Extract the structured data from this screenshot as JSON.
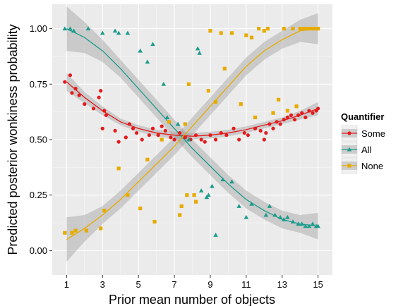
{
  "chart_data": {
    "type": "scatter",
    "xlabel": "Prior mean number of objects",
    "ylabel": "Predicted posterior wonkiness probability",
    "xlim": [
      0.2,
      15.8
    ],
    "ylim": [
      -0.11,
      1.11
    ],
    "x_ticks": [
      "1",
      "3",
      "5",
      "7",
      "9",
      "11",
      "13",
      "15"
    ],
    "x_tick_values": [
      1,
      3,
      5,
      7,
      9,
      11,
      13,
      15
    ],
    "y_ticks": [
      "0.00",
      "0.25",
      "0.50",
      "0.75",
      "1.00"
    ],
    "y_tick_values": [
      0,
      0.25,
      0.5,
      0.75,
      1
    ],
    "grid": true,
    "legend": {
      "title": "Quantifier",
      "position": "right"
    },
    "series": [
      {
        "name": "Some",
        "marker": "circle",
        "color": "#e41a1c",
        "points": [
          [
            0.9,
            0.76
          ],
          [
            1.2,
            0.79
          ],
          [
            1.3,
            0.71
          ],
          [
            1.5,
            0.73
          ],
          [
            1.7,
            0.7
          ],
          [
            2.0,
            0.66
          ],
          [
            2.5,
            0.64
          ],
          [
            2.8,
            0.69
          ],
          [
            2.9,
            0.72
          ],
          [
            3.0,
            0.55
          ],
          [
            3.1,
            0.63
          ],
          [
            3.2,
            0.61
          ],
          [
            3.7,
            0.54
          ],
          [
            3.9,
            0.49
          ],
          [
            4.3,
            0.51
          ],
          [
            4.5,
            0.57
          ],
          [
            4.7,
            0.55
          ],
          [
            4.9,
            0.53
          ],
          [
            5.2,
            0.5
          ],
          [
            5.6,
            0.52
          ],
          [
            5.8,
            0.55
          ],
          [
            6.1,
            0.52
          ],
          [
            6.3,
            0.56
          ],
          [
            6.5,
            0.54
          ],
          [
            6.8,
            0.51
          ],
          [
            7.0,
            0.5
          ],
          [
            7.3,
            0.53
          ],
          [
            7.6,
            0.51
          ],
          [
            7.9,
            0.5
          ],
          [
            8.2,
            0.52
          ],
          [
            8.5,
            0.5
          ],
          [
            8.7,
            0.49
          ],
          [
            9.0,
            0.52
          ],
          [
            9.3,
            0.5
          ],
          [
            9.6,
            0.53
          ],
          [
            9.9,
            0.52
          ],
          [
            10.3,
            0.55
          ],
          [
            10.6,
            0.5
          ],
          [
            10.9,
            0.53
          ],
          [
            11.1,
            0.52
          ],
          [
            11.5,
            0.55
          ],
          [
            11.8,
            0.54
          ],
          [
            12.0,
            0.5
          ],
          [
            12.1,
            0.53
          ],
          [
            12.3,
            0.57
          ],
          [
            12.5,
            0.55
          ],
          [
            12.7,
            0.58
          ],
          [
            12.9,
            0.57
          ],
          [
            13.1,
            0.59
          ],
          [
            13.3,
            0.6
          ],
          [
            13.5,
            0.61
          ],
          [
            13.7,
            0.59
          ],
          [
            13.9,
            0.61
          ],
          [
            14.1,
            0.62
          ],
          [
            14.3,
            0.6
          ],
          [
            14.5,
            0.63
          ],
          [
            14.7,
            0.62
          ],
          [
            14.9,
            0.63
          ],
          [
            15.0,
            0.64
          ]
        ],
        "fit": [
          [
            1,
            0.76
          ],
          [
            2,
            0.69
          ],
          [
            3,
            0.63
          ],
          [
            4,
            0.58
          ],
          [
            5,
            0.55
          ],
          [
            6,
            0.53
          ],
          [
            7,
            0.52
          ],
          [
            8,
            0.515
          ],
          [
            9,
            0.52
          ],
          [
            10,
            0.53
          ],
          [
            11,
            0.545
          ],
          [
            12,
            0.565
          ],
          [
            13,
            0.585
          ],
          [
            14,
            0.61
          ],
          [
            15,
            0.64
          ]
        ],
        "fit_ci": [
          [
            1,
            0.72,
            0.8
          ],
          [
            2,
            0.665,
            0.715
          ],
          [
            3,
            0.61,
            0.65
          ],
          [
            4,
            0.565,
            0.595
          ],
          [
            5,
            0.535,
            0.565
          ],
          [
            6,
            0.515,
            0.545
          ],
          [
            7,
            0.505,
            0.535
          ],
          [
            8,
            0.5,
            0.53
          ],
          [
            9,
            0.505,
            0.535
          ],
          [
            10,
            0.515,
            0.545
          ],
          [
            11,
            0.53,
            0.56
          ],
          [
            12,
            0.55,
            0.58
          ],
          [
            13,
            0.57,
            0.6
          ],
          [
            14,
            0.59,
            0.63
          ],
          [
            15,
            0.61,
            0.67
          ]
        ]
      },
      {
        "name": "All",
        "marker": "triangle",
        "color": "#1a9c8c",
        "points": [
          [
            0.9,
            1.0
          ],
          [
            1.2,
            1.0
          ],
          [
            1.4,
            0.99
          ],
          [
            2.2,
            1.0
          ],
          [
            3.0,
            0.98
          ],
          [
            3.7,
            0.99
          ],
          [
            3.9,
            0.98
          ],
          [
            4.4,
            0.98
          ],
          [
            5.1,
            0.9
          ],
          [
            5.5,
            0.85
          ],
          [
            5.8,
            0.93
          ],
          [
            6.4,
            0.75
          ],
          [
            6.6,
            0.6
          ],
          [
            7.2,
            0.57
          ],
          [
            7.8,
            0.5
          ],
          [
            8.3,
            0.91
          ],
          [
            8.4,
            0.89
          ],
          [
            8.5,
            0.27
          ],
          [
            8.8,
            0.24
          ],
          [
            8.9,
            0.25
          ],
          [
            9.1,
            0.29
          ],
          [
            9.3,
            0.07
          ],
          [
            9.7,
            0.32
          ],
          [
            10.2,
            0.31
          ],
          [
            10.6,
            0.2
          ],
          [
            11.0,
            0.15
          ],
          [
            11.3,
            0.21
          ],
          [
            12.1,
            0.16
          ],
          [
            12.3,
            0.2
          ],
          [
            12.6,
            0.16
          ],
          [
            12.9,
            0.15
          ],
          [
            13.1,
            0.14
          ],
          [
            13.3,
            0.15
          ],
          [
            13.6,
            0.13
          ],
          [
            13.9,
            0.12
          ],
          [
            14.1,
            0.12
          ],
          [
            14.3,
            0.11
          ],
          [
            14.5,
            0.11
          ],
          [
            14.7,
            0.12
          ],
          [
            14.9,
            0.11
          ],
          [
            15.0,
            0.11
          ]
        ],
        "fit": [
          [
            1,
            1.0
          ],
          [
            2,
            0.96
          ],
          [
            3,
            0.9
          ],
          [
            4,
            0.82
          ],
          [
            5,
            0.73
          ],
          [
            6,
            0.64
          ],
          [
            7,
            0.55
          ],
          [
            8,
            0.46
          ],
          [
            9,
            0.38
          ],
          [
            10,
            0.3
          ],
          [
            11,
            0.23
          ],
          [
            12,
            0.18
          ],
          [
            13,
            0.14
          ],
          [
            14,
            0.12
          ],
          [
            15,
            0.11
          ]
        ],
        "fit_ci": [
          [
            1,
            0.9,
            1.1
          ],
          [
            2,
            0.89,
            1.03
          ],
          [
            3,
            0.85,
            0.95
          ],
          [
            4,
            0.78,
            0.86
          ],
          [
            5,
            0.69,
            0.77
          ],
          [
            6,
            0.6,
            0.68
          ],
          [
            7,
            0.51,
            0.59
          ],
          [
            8,
            0.42,
            0.5
          ],
          [
            9,
            0.34,
            0.42
          ],
          [
            10,
            0.26,
            0.34
          ],
          [
            11,
            0.19,
            0.27
          ],
          [
            12,
            0.14,
            0.22
          ],
          [
            13,
            0.1,
            0.18
          ],
          [
            14,
            0.08,
            0.16
          ],
          [
            15,
            0.05,
            0.17
          ]
        ]
      },
      {
        "name": "None",
        "marker": "square",
        "color": "#e6ab02",
        "points": [
          [
            0.9,
            0.08
          ],
          [
            1.3,
            0.08
          ],
          [
            1.5,
            0.09
          ],
          [
            2.1,
            0.09
          ],
          [
            2.9,
            0.1
          ],
          [
            3.1,
            0.18
          ],
          [
            3.9,
            0.37
          ],
          [
            4.4,
            0.25
          ],
          [
            5.1,
            0.19
          ],
          [
            5.5,
            0.41
          ],
          [
            5.9,
            0.13
          ],
          [
            6.3,
            0.5
          ],
          [
            6.7,
            0.58
          ],
          [
            7.3,
            0.16
          ],
          [
            7.4,
            0.2
          ],
          [
            7.6,
            0.57
          ],
          [
            7.7,
            0.25
          ],
          [
            7.8,
            0.75
          ],
          [
            8.1,
            0.25
          ],
          [
            8.2,
            0.22
          ],
          [
            8.9,
            0.72
          ],
          [
            9.0,
            0.99
          ],
          [
            9.3,
            0.67
          ],
          [
            9.6,
            0.98
          ],
          [
            9.8,
            0.82
          ],
          [
            10.2,
            0.98
          ],
          [
            10.7,
            0.66
          ],
          [
            11.0,
            0.97
          ],
          [
            11.3,
            0.96
          ],
          [
            11.5,
            0.6
          ],
          [
            11.7,
            1.0
          ],
          [
            12.0,
            0.99
          ],
          [
            12.2,
            1.0
          ],
          [
            12.5,
            0.62
          ],
          [
            12.8,
            0.68
          ],
          [
            13.1,
            1.0
          ],
          [
            13.3,
            0.63
          ],
          [
            13.6,
            1.0
          ],
          [
            13.8,
            0.65
          ],
          [
            14.0,
            1.0
          ],
          [
            14.2,
            1.0
          ],
          [
            14.4,
            1.0
          ],
          [
            14.6,
            1.0
          ],
          [
            14.8,
            1.0
          ],
          [
            15.0,
            1.0
          ]
        ],
        "fit": [
          [
            1,
            0.05
          ],
          [
            2,
            0.1
          ],
          [
            3,
            0.16
          ],
          [
            4,
            0.23
          ],
          [
            5,
            0.31
          ],
          [
            6,
            0.39
          ],
          [
            7,
            0.47
          ],
          [
            8,
            0.56
          ],
          [
            9,
            0.65
          ],
          [
            10,
            0.74
          ],
          [
            11,
            0.83
          ],
          [
            12,
            0.9
          ],
          [
            13,
            0.95
          ],
          [
            14,
            0.99
          ],
          [
            15,
            1.0
          ]
        ],
        "fit_ci": [
          [
            1,
            -0.05,
            0.15
          ],
          [
            2,
            0.04,
            0.16
          ],
          [
            3,
            0.12,
            0.2
          ],
          [
            4,
            0.19,
            0.27
          ],
          [
            5,
            0.27,
            0.35
          ],
          [
            6,
            0.35,
            0.43
          ],
          [
            7,
            0.43,
            0.51
          ],
          [
            8,
            0.52,
            0.6
          ],
          [
            9,
            0.61,
            0.69
          ],
          [
            10,
            0.7,
            0.78
          ],
          [
            11,
            0.79,
            0.87
          ],
          [
            12,
            0.86,
            0.94
          ],
          [
            13,
            0.91,
            0.99
          ],
          [
            14,
            0.94,
            1.04
          ],
          [
            15,
            0.93,
            1.07
          ]
        ]
      }
    ],
    "colors": {
      "panel_bg": "#ebebeb",
      "grid": "#ffffff",
      "ci_band": "#999999"
    }
  }
}
